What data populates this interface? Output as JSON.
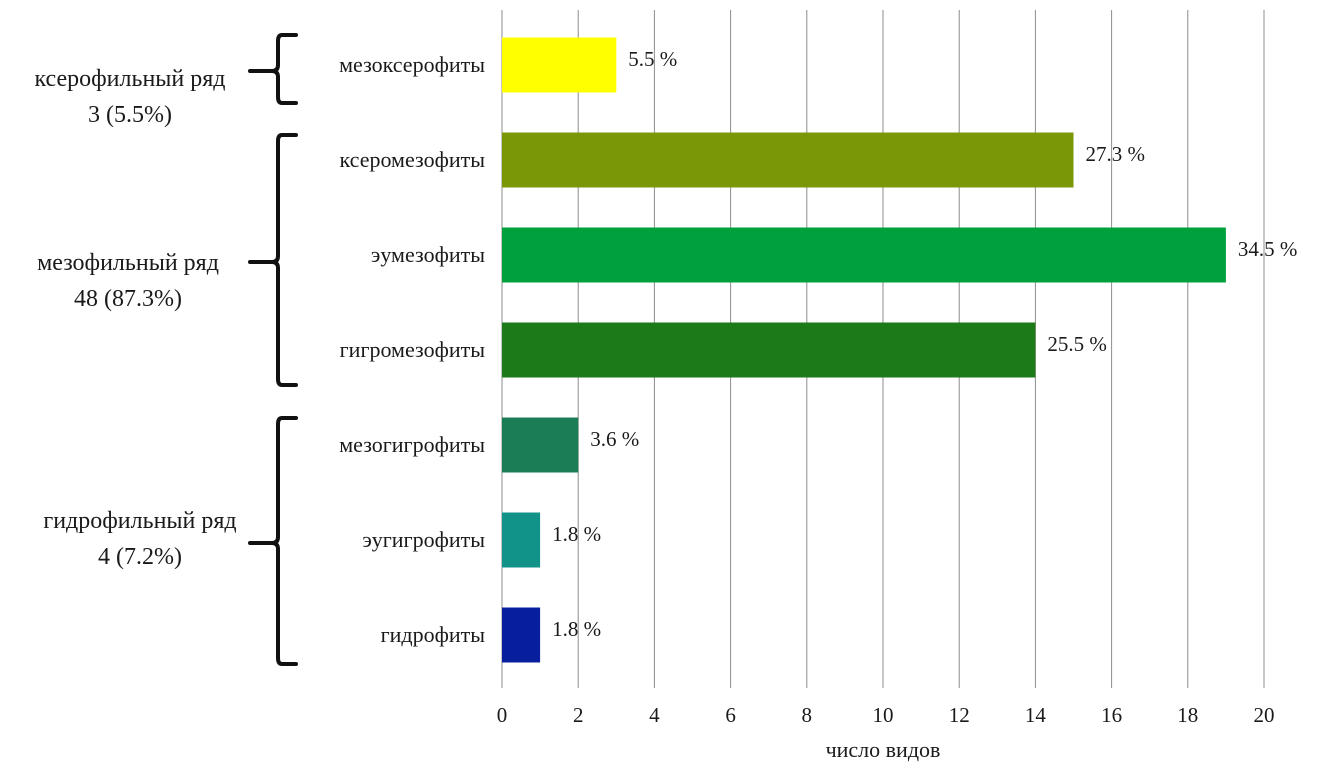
{
  "chart_data": {
    "type": "bar",
    "orientation": "horizontal",
    "categories": [
      "мезоксерофиты",
      "ксеромезофиты",
      "эумезофиты",
      "гигромезофиты",
      "мезогигрофиты",
      "эугигрофиты",
      "гидрофиты"
    ],
    "values": [
      3,
      15,
      19,
      14,
      2,
      1,
      1
    ],
    "data_labels": [
      "5.5 %",
      "27.3 %",
      "34.5 %",
      "25.5 %",
      "3.6 %",
      "1.8 %",
      "1.8 %"
    ],
    "colors": [
      "#ffff00",
      "#7a9805",
      "#00a03c",
      "#1d7a18",
      "#1a7d55",
      "#12938a",
      "#071f9c"
    ],
    "xlabel": "число видов",
    "ylabel": "",
    "title": "",
    "xlim": [
      0,
      20
    ],
    "x_ticks": [
      0,
      2,
      4,
      6,
      8,
      10,
      12,
      14,
      16,
      18,
      20
    ],
    "grid": "vertical",
    "groups": [
      {
        "line1": "ксерофильный ряд",
        "line2": "3 (5.5%)",
        "members": [
          0
        ]
      },
      {
        "line1": "мезофильный ряд",
        "line2": "48 (87.3%)",
        "members": [
          1,
          2,
          3
        ]
      },
      {
        "line1": "гидрофильный ряд",
        "line2": "4 (7.2%)",
        "members": [
          4,
          5,
          6
        ]
      }
    ]
  }
}
